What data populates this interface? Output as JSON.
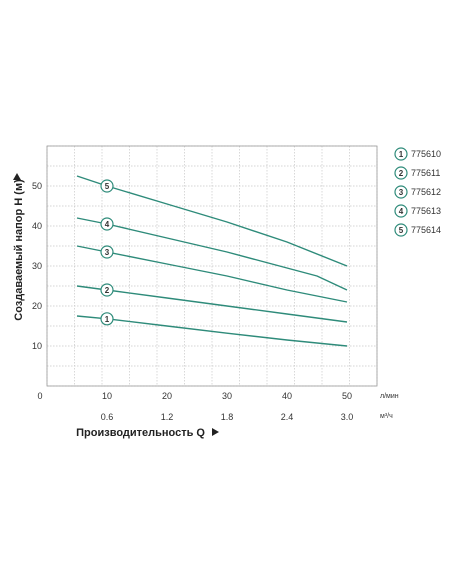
{
  "chart_data": {
    "type": "line",
    "title": "",
    "xlabel": "Производительность Q",
    "ylabel": "Создаваемый напор H (м)",
    "x_unit": "л/мин",
    "x2_unit": "м³/ч",
    "xlim": [
      0,
      55
    ],
    "ylim": [
      0,
      60
    ],
    "x_ticks": [
      0,
      10,
      20,
      30,
      40,
      50
    ],
    "x2_ticks": [
      "0.6",
      "1.2",
      "1.8",
      "2.4",
      "3.0"
    ],
    "y_ticks": [
      10,
      20,
      30,
      40,
      50
    ],
    "grid": true,
    "legend_position": "right",
    "line_color": "#2e8b7a",
    "series": [
      {
        "name": "775610",
        "badge": "1",
        "x": [
          5,
          10,
          20,
          30,
          40,
          50
        ],
        "y": [
          17.5,
          16.8,
          15,
          13.2,
          11.5,
          10
        ]
      },
      {
        "name": "775611",
        "badge": "2",
        "x": [
          5,
          10,
          20,
          30,
          40,
          50
        ],
        "y": [
          25,
          24,
          22,
          20,
          18,
          16
        ]
      },
      {
        "name": "775612",
        "badge": "3",
        "x": [
          5,
          10,
          20,
          30,
          40,
          50
        ],
        "y": [
          35,
          33.5,
          30.5,
          27.5,
          24,
          21
        ]
      },
      {
        "name": "775613",
        "badge": "4",
        "x": [
          5,
          10,
          20,
          30,
          40,
          45,
          50
        ],
        "y": [
          42,
          40.5,
          37,
          33.5,
          29.5,
          27.5,
          24
        ]
      },
      {
        "name": "775614",
        "badge": "5",
        "x": [
          5,
          10,
          20,
          30,
          40,
          50
        ],
        "y": [
          52.5,
          50,
          45.5,
          41,
          36,
          30
        ]
      }
    ]
  }
}
